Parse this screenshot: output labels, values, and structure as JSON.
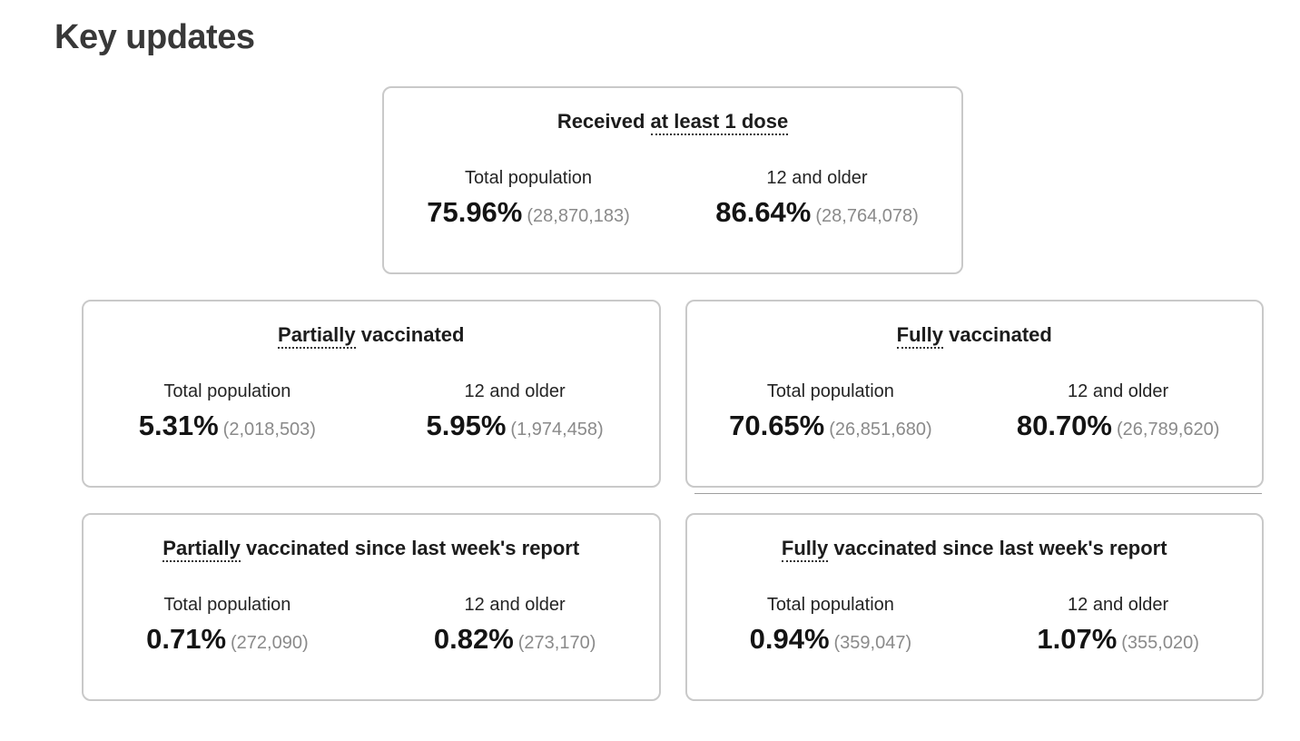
{
  "page": {
    "title": "Key updates"
  },
  "columns": {
    "left": "Total population",
    "right": "12 and older"
  },
  "colors": {
    "card_border": "#c9c9c9",
    "percent_text": "#141414",
    "count_text": "#8a8a8a",
    "heading_text": "#383838"
  },
  "cards": [
    {
      "name": "received-at-least-1-dose",
      "title_prefix": "Received ",
      "title_term": "at least 1 dose",
      "title_suffix": "",
      "stats": [
        {
          "label": "Total population",
          "percent": "75.96%",
          "count": "(28,870,183)"
        },
        {
          "label": "12 and older",
          "percent": "86.64%",
          "count": "(28,764,078)"
        }
      ]
    },
    {
      "name": "partially-vaccinated",
      "title_prefix": "",
      "title_term": "Partially",
      "title_suffix": " vaccinated",
      "stats": [
        {
          "label": "Total population",
          "percent": "5.31%",
          "count": "(2,018,503)"
        },
        {
          "label": "12 and older",
          "percent": "5.95%",
          "count": "(1,974,458)"
        }
      ]
    },
    {
      "name": "fully-vaccinated",
      "title_prefix": "",
      "title_term": "Fully",
      "title_suffix": " vaccinated",
      "stats": [
        {
          "label": "Total population",
          "percent": "70.65%",
          "count": "(26,851,680)"
        },
        {
          "label": "12 and older",
          "percent": "80.70%",
          "count": "(26,789,620)"
        }
      ]
    },
    {
      "name": "partially-vaccinated-since-last-week",
      "title_prefix": "",
      "title_term": "Partially",
      "title_suffix": " vaccinated since last week's report",
      "stats": [
        {
          "label": "Total population",
          "percent": "0.71%",
          "count": "(272,090)"
        },
        {
          "label": "12 and older",
          "percent": "0.82%",
          "count": "(273,170)"
        }
      ]
    },
    {
      "name": "fully-vaccinated-since-last-week",
      "title_prefix": "",
      "title_term": "Fully",
      "title_suffix": " vaccinated since last week's report",
      "stats": [
        {
          "label": "Total population",
          "percent": "0.94%",
          "count": "(359,047)"
        },
        {
          "label": "12 and older",
          "percent": "1.07%",
          "count": "(355,020)"
        }
      ]
    }
  ]
}
